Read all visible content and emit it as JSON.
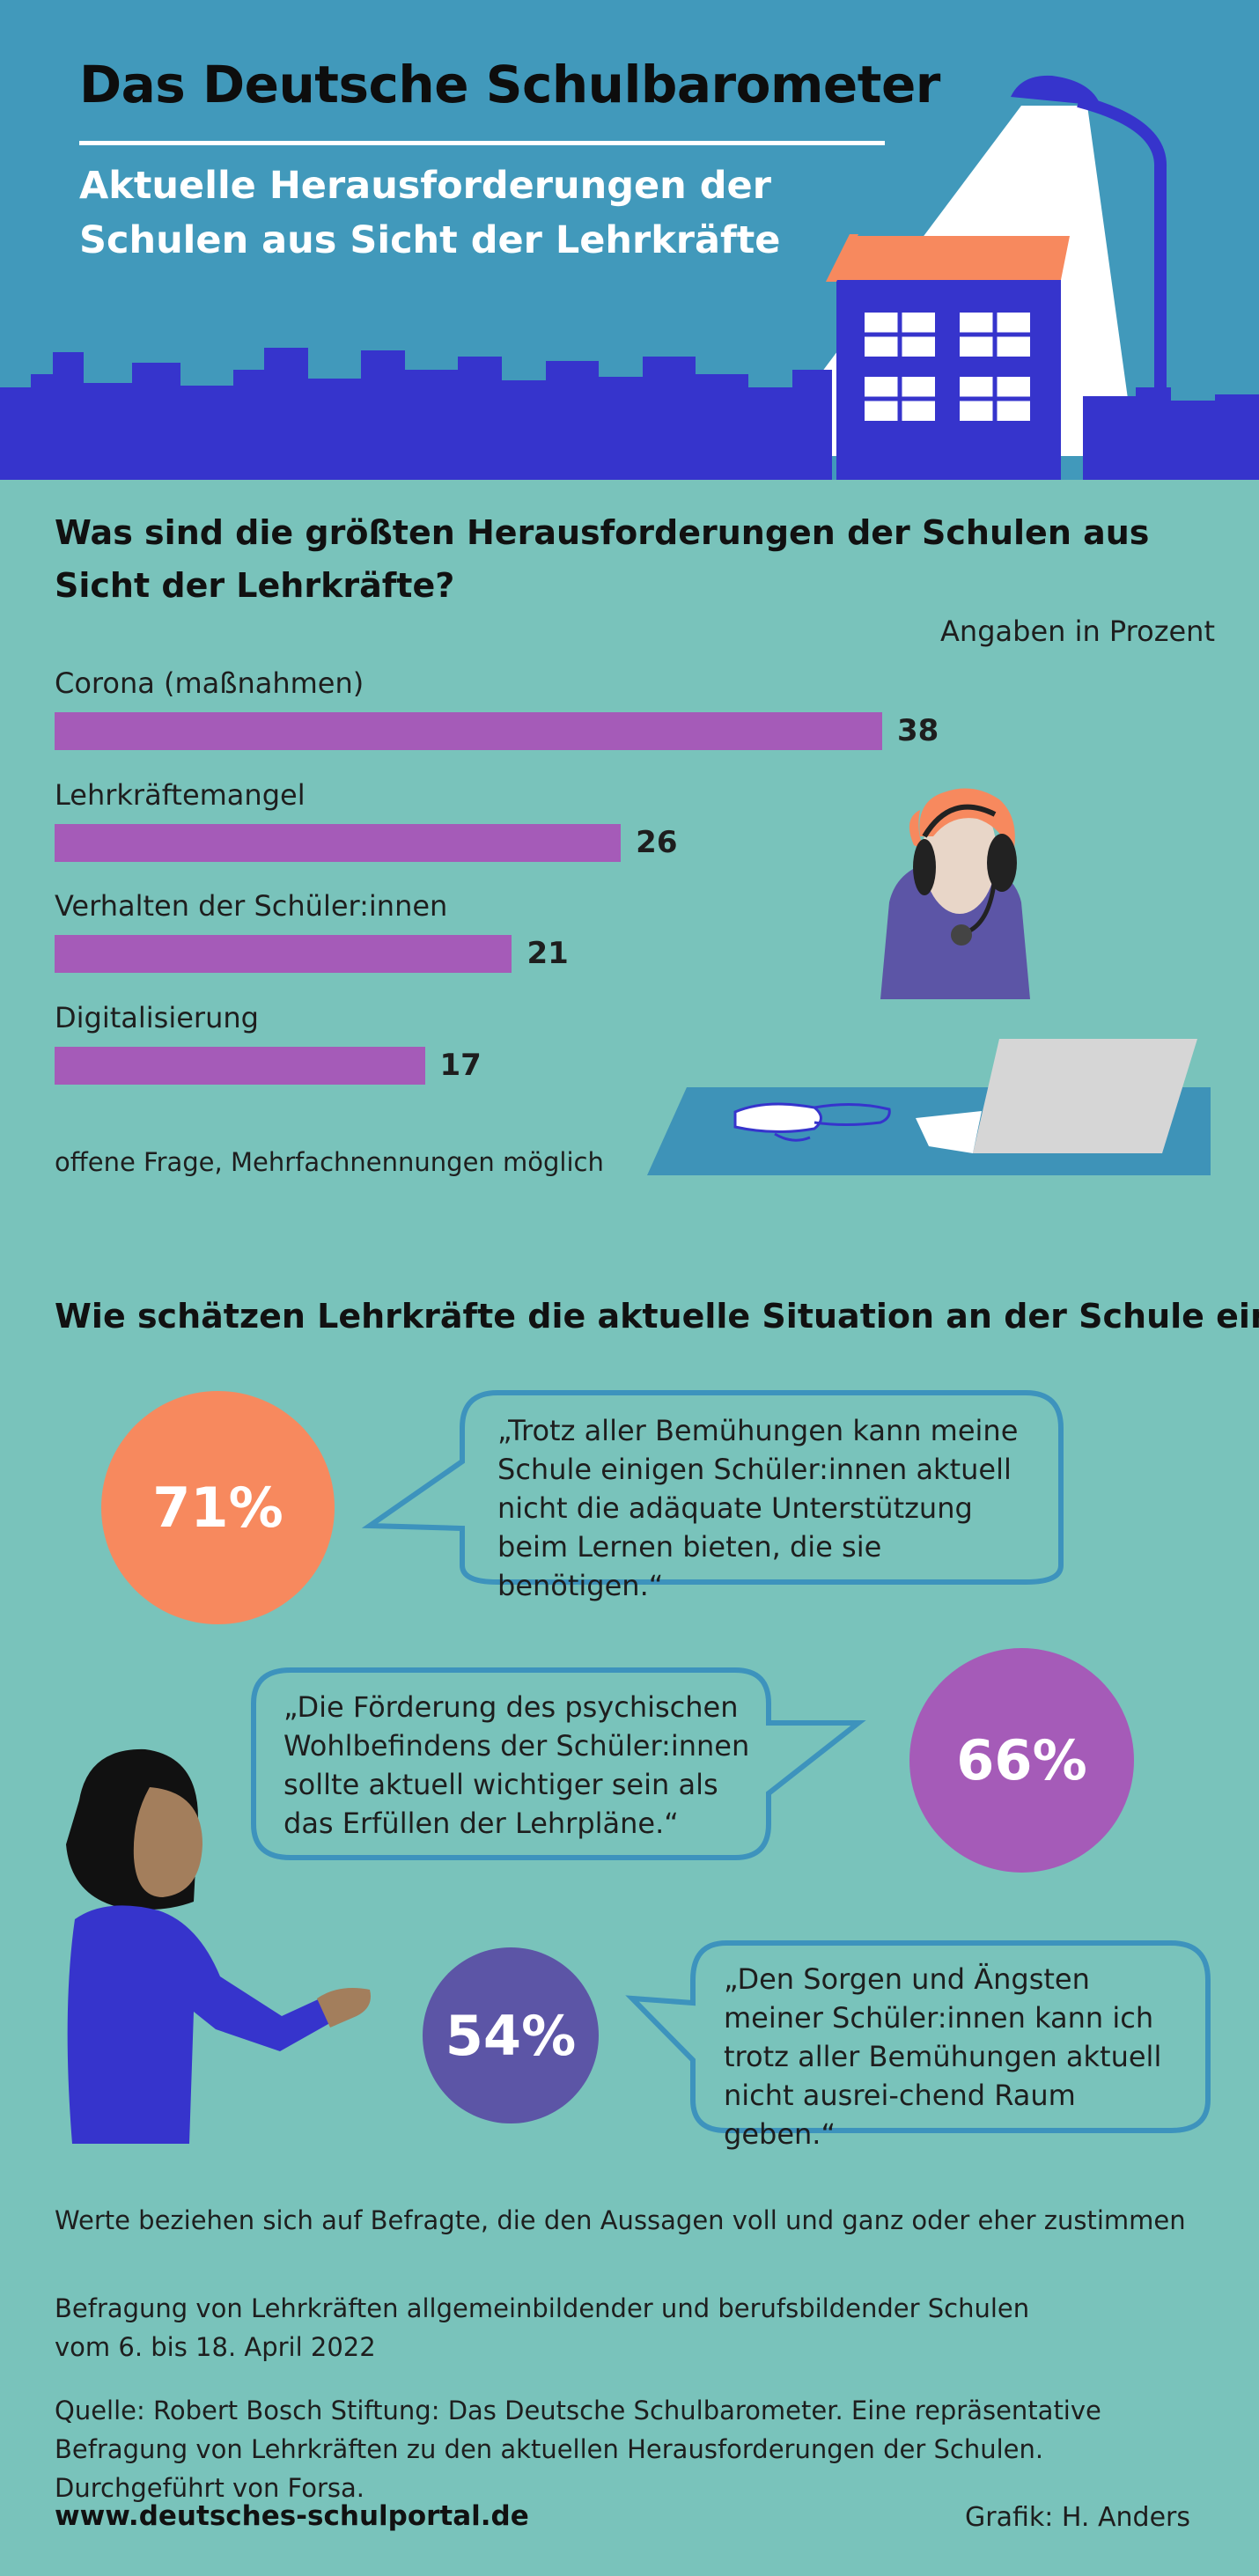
{
  "header": {
    "title": "Das Deutsche Schulbarometer",
    "subtitle": "Aktuelle Herausforderungen der Schulen aus Sicht der Lehrkräfte"
  },
  "section1": {
    "heading": "Was sind die größten Herausforderungen der Schulen aus Sicht der Lehrkräfte?",
    "unit_note": "Angaben in Prozent",
    "note": "offene Frage, Mehrfachnennungen möglich"
  },
  "chart_data": {
    "type": "bar",
    "orientation": "horizontal",
    "categories": [
      "Corona (maßnahmen)",
      "Lehrkräftemangel",
      "Verhalten der Schüler:innen",
      "Digitalisierung"
    ],
    "values": [
      38,
      26,
      21,
      17
    ],
    "value_labels": [
      "38",
      "26",
      "21",
      "17"
    ],
    "ylabel": "Angaben in Prozent",
    "bar_color": "#a55bb8",
    "grid": false
  },
  "section2": {
    "heading": "Wie schätzen Lehrkräfte die aktuelle Situation an der Schule ein?",
    "statements": [
      {
        "percent": "71%",
        "value": 71,
        "color": "#f7895e",
        "quote": "„Trotz aller Bemühungen kann meine Schule einigen Schüler:innen aktuell nicht die adäquate Unterstützung beim Lernen bieten, die sie benötigen.“"
      },
      {
        "percent": "66%",
        "value": 66,
        "color": "#a55bb8",
        "quote": "„Die Förderung des psychischen Wohlbefindens der Schüler:innen sollte aktuell wichtiger sein als das Erfüllen der Lehrpläne.“"
      },
      {
        "percent": "54%",
        "value": 54,
        "color": "#5c55a6",
        "quote": "„Den Sorgen und Ängsten meiner Schüler:innen kann ich trotz aller Bemühungen aktuell  nicht ausrei-chend Raum geben.“"
      }
    ],
    "footnote": "Werte beziehen sich auf Befragte, die den Aussagen voll und ganz oder eher zustimmen"
  },
  "footer": {
    "survey": "Befragung von Lehrkräften allgemeinbildender und berufsbildender Schulen vom 6. bis 18. April 2022",
    "source": "Quelle: Robert Bosch Stiftung: Das Deutsche Schulbarometer. Eine repräsentative Befragung von Lehrkräften zu den aktuellen Herausforderungen der Schulen. Durchgeführt von Forsa.",
    "website": "www.deutsches-schulportal.de",
    "credit": "Grafik: H. Anders"
  },
  "colors": {
    "background": "#79c3bb",
    "header_sky": "#4199bb",
    "skyline": "#3634cc",
    "bubble_border": "#3d93bd"
  }
}
